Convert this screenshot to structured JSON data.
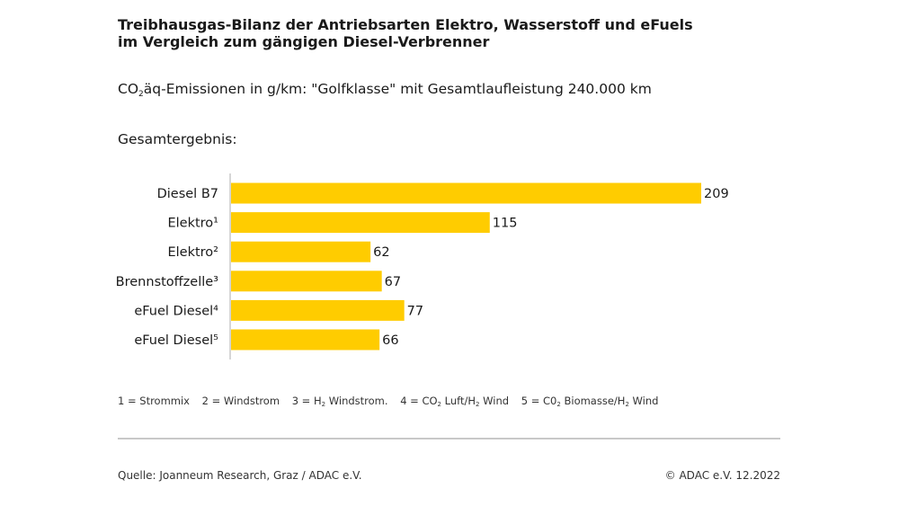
{
  "header": {
    "title_line1": "Treibhausgas-Bilanz der Antriebsarten Elektro, Wasserstoff und eFuels",
    "title_line2": "im Vergleich zum gängigen Diesel-Verbrenner",
    "subtitle_pre": "CO",
    "subtitle_sub": "2",
    "subtitle_post": "äq-Emissionen in g/km: \"Golfklasse\" mit Gesamtlaufleistung 240.000 km",
    "section_label": "Gesamtergebnis:"
  },
  "chart_data": {
    "type": "bar",
    "orientation": "horizontal",
    "categories": [
      "Diesel B7",
      "Elektro¹",
      "Elektro²",
      "Brennstoffzelle³",
      "eFuel Diesel⁴",
      "eFuel Diesel⁵"
    ],
    "values": [
      209,
      115,
      62,
      67,
      77,
      66
    ],
    "xlim": [
      0,
      209
    ],
    "grid": false,
    "bar_color": "#ffcc00",
    "axis_color": "#c8c8c8"
  },
  "footnotes": {
    "fn1": "1 = Strommix",
    "fn2": "2 = Windstrom",
    "fn3_pre": "3 = H",
    "fn3_sub": "2",
    "fn3_post": " Windstrom.",
    "fn4_pre": "4 = CO",
    "fn4_sub1": "2",
    "fn4_mid": " Luft/H",
    "fn4_sub2": "2",
    "fn4_post": " Wind",
    "fn5_pre": "5 = C0",
    "fn5_sub1": "2",
    "fn5_mid": " Biomasse/H",
    "fn5_sub2": "2",
    "fn5_post": " Wind"
  },
  "footer": {
    "source": "Quelle: Joanneum Research, Graz / ADAC e.V.",
    "copyright": "© ADAC e.V. 12.2022"
  }
}
